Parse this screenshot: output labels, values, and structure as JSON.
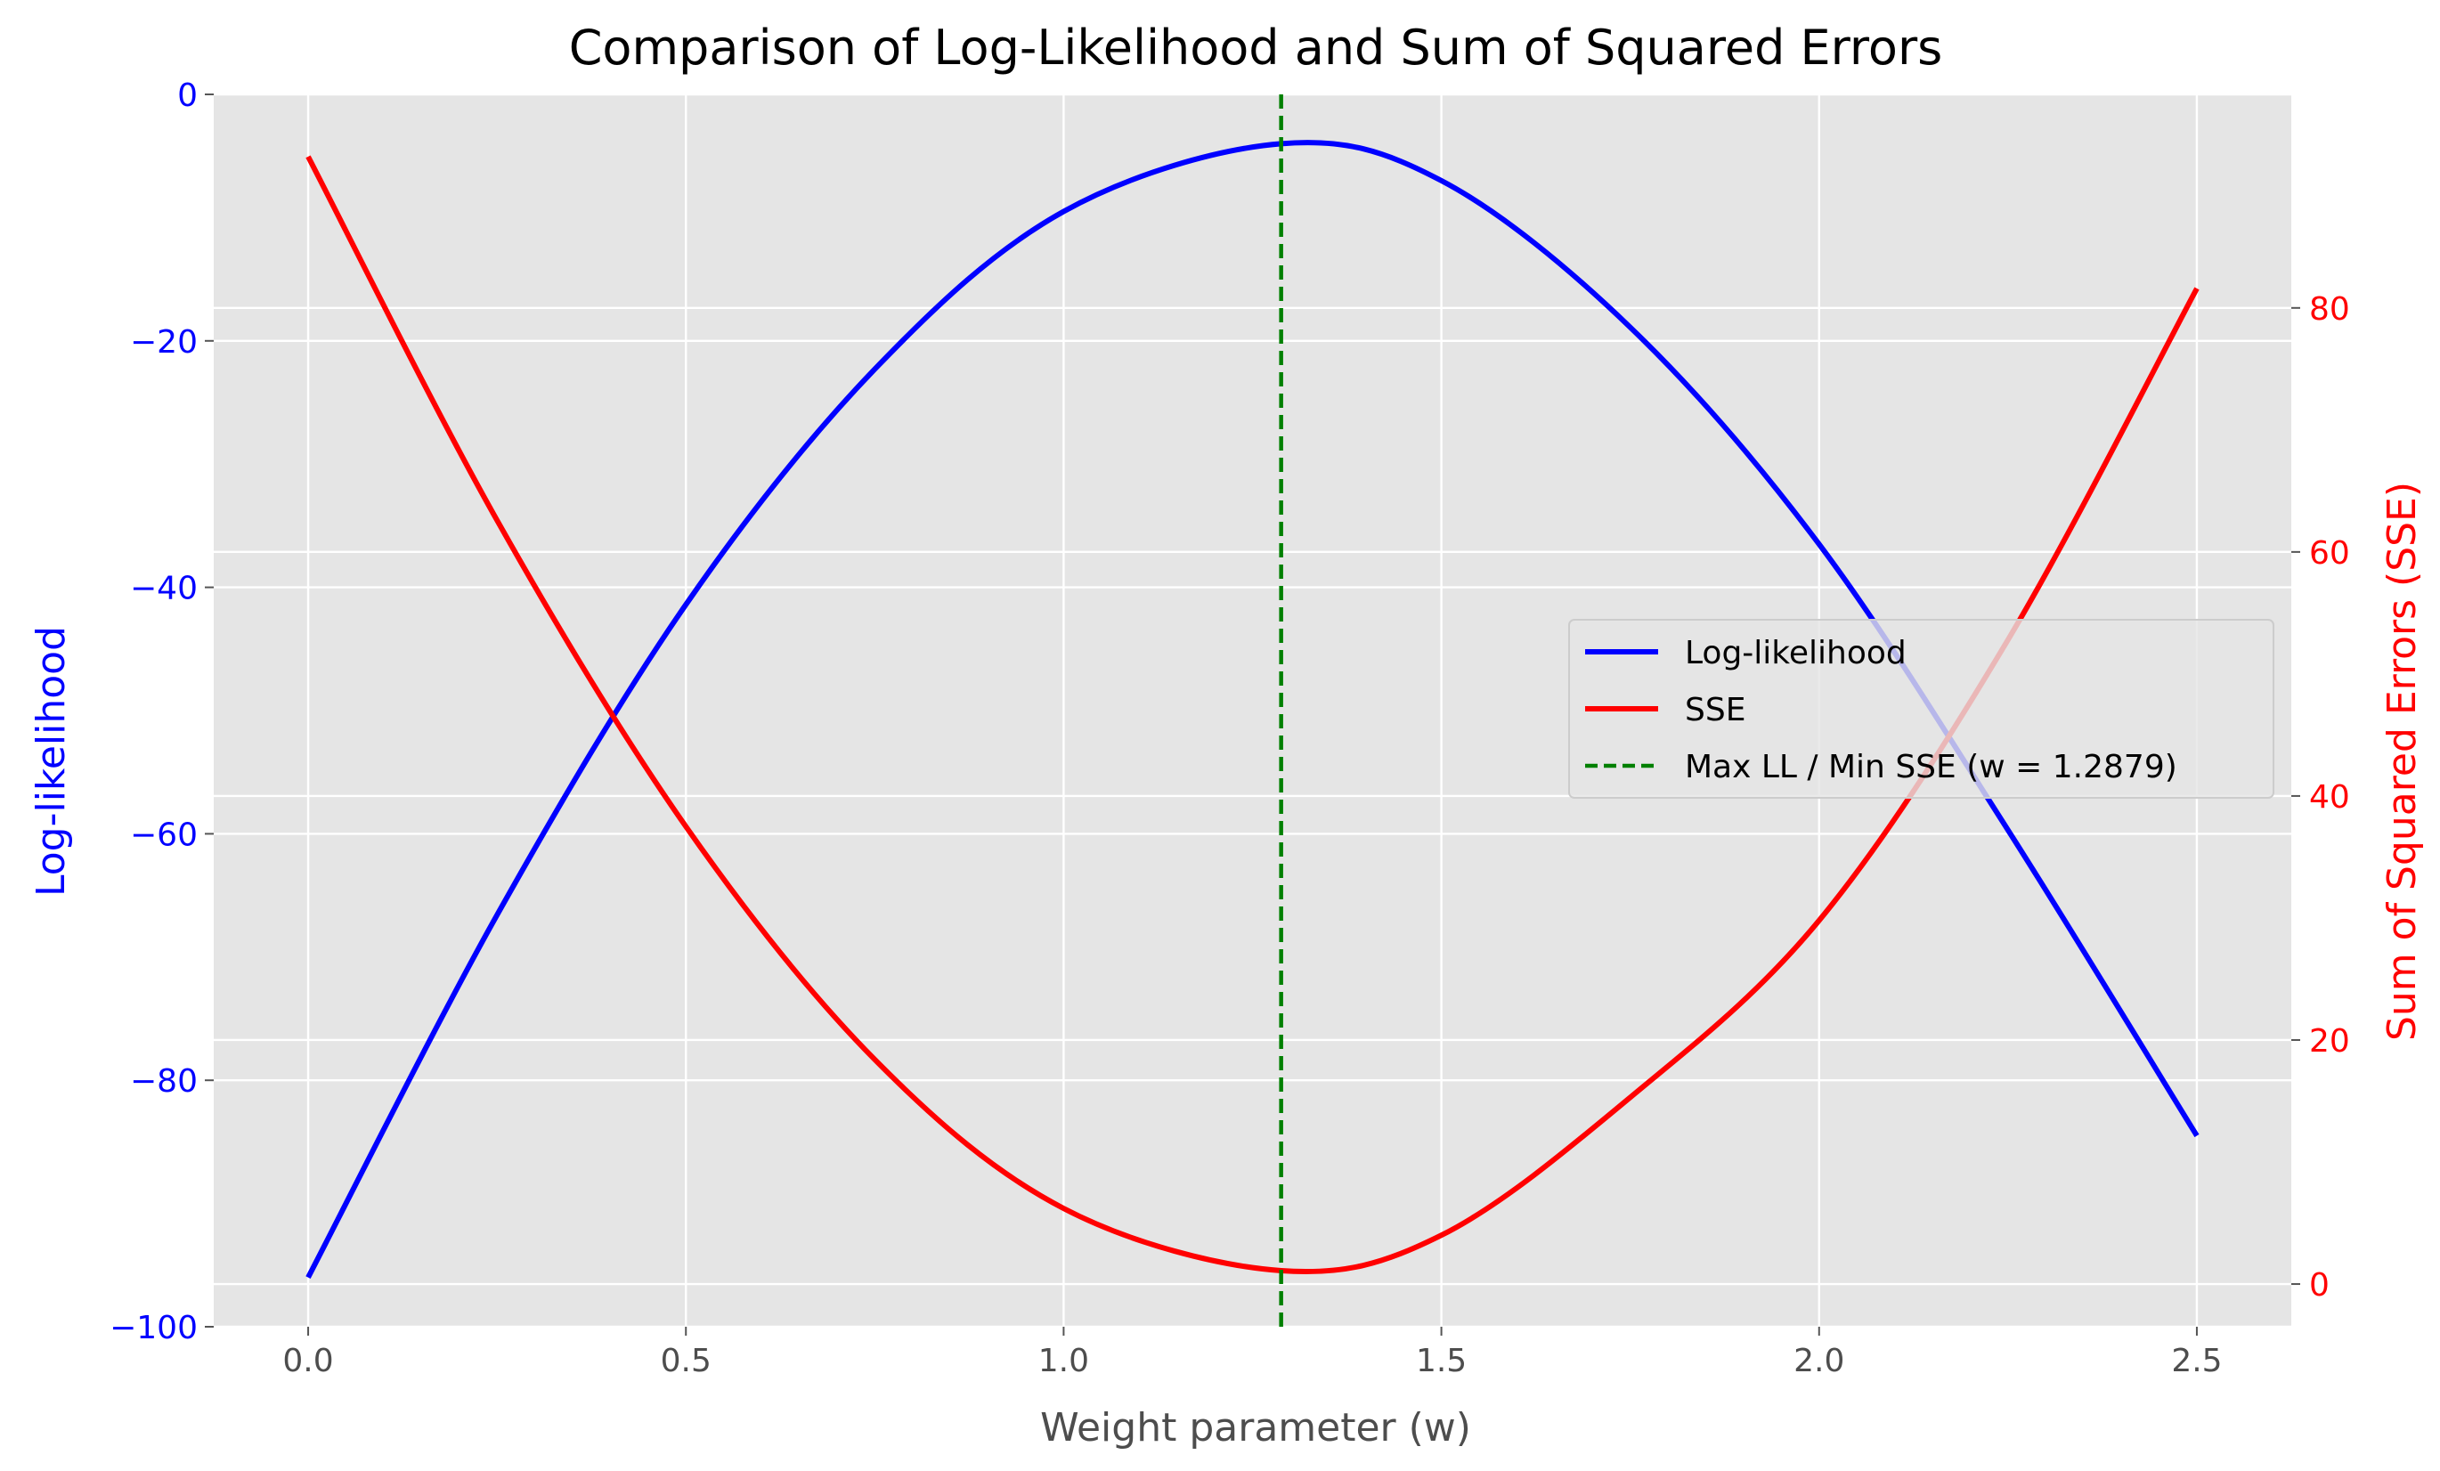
{
  "chart_data": {
    "type": "line",
    "title": "Comparison of Log-Likelihood and Sum of Squared Errors",
    "xlabel": "Weight parameter (w)",
    "ylabel_left": "Log-likelihood",
    "ylabel_right": "Sum of Squared Errors (SSE)",
    "xlim": [
      -0.125,
      2.625
    ],
    "ylim_left": [
      -100,
      0
    ],
    "ylim_right": [
      -3.5,
      97.5
    ],
    "x_ticks": [
      "0.0",
      "0.5",
      "1.0",
      "1.5",
      "2.0",
      "2.5"
    ],
    "y_left_ticks": [
      "0",
      "−20",
      "−40",
      "−60",
      "−80",
      "−100"
    ],
    "y_right_ticks": [
      "0",
      "20",
      "40",
      "60",
      "80"
    ],
    "grid": true,
    "legend_position": "center-right",
    "colors": {
      "log_likelihood": "#0000ff",
      "sse": "#ff0000",
      "vline": "#008000",
      "left_axis_text": "#0000ff",
      "right_axis_text": "#ff0000",
      "plot_background": "#e5e5e5"
    },
    "series": [
      {
        "name": "Log-likelihood",
        "axis": "left",
        "x": [
          0.0,
          0.25,
          0.5,
          0.75,
          1.0,
          1.2879,
          1.5,
          1.75,
          2.0,
          2.25,
          2.5
        ],
        "y": [
          -96,
          -66.6,
          -41.4,
          -22.3,
          -9.5,
          -4,
          -7,
          -18.9,
          -36.5,
          -59.7,
          -84.5
        ]
      },
      {
        "name": "SSE",
        "axis": "right",
        "x": [
          0.0,
          0.25,
          0.5,
          0.75,
          1.0,
          1.2879,
          1.5,
          1.75,
          2.0,
          2.25,
          2.5
        ],
        "y": [
          92.4,
          62.6,
          37.5,
          18.4,
          6.2,
          1.1,
          4.0,
          15.3,
          29.8,
          52.8,
          81.6
        ]
      }
    ],
    "vline": {
      "name": "Max LL / Min SSE (w = 1.2879)",
      "x": 1.2879
    }
  }
}
